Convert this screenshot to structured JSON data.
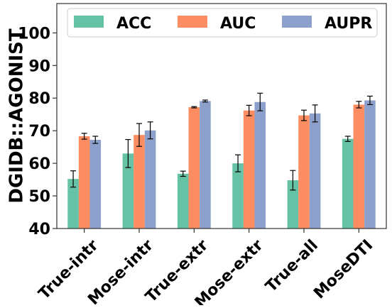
{
  "chart_data": {
    "type": "bar",
    "title": "",
    "xlabel": "",
    "ylabel": "DGIDB::AGONIST",
    "ylim": [
      40,
      109
    ],
    "yticks": [
      40,
      50,
      60,
      70,
      80,
      90,
      100
    ],
    "grid": false,
    "legend_position": "top",
    "categories": [
      "True-intr",
      "Mose-intr",
      "True-extr",
      "Mose-extr",
      "True-all",
      "MoseDTI"
    ],
    "series": [
      {
        "name": "ACC",
        "color": "#66c2a5",
        "values": [
          55.2,
          63.0,
          56.8,
          60.0,
          54.8,
          67.5
        ],
        "errors": [
          2.5,
          4.3,
          0.8,
          2.6,
          3.0,
          0.8
        ]
      },
      {
        "name": "AUC",
        "color": "#fc8d62",
        "values": [
          68.3,
          68.7,
          77.2,
          76.2,
          74.7,
          78.0
        ],
        "errors": [
          0.9,
          3.5,
          0.2,
          1.6,
          1.6,
          1.0
        ]
      },
      {
        "name": "AUPR",
        "color": "#8da0cb",
        "values": [
          67.2,
          70.1,
          79.1,
          78.8,
          75.3,
          79.3
        ],
        "errors": [
          1.1,
          2.6,
          0.3,
          2.7,
          2.6,
          1.3
        ]
      }
    ]
  }
}
